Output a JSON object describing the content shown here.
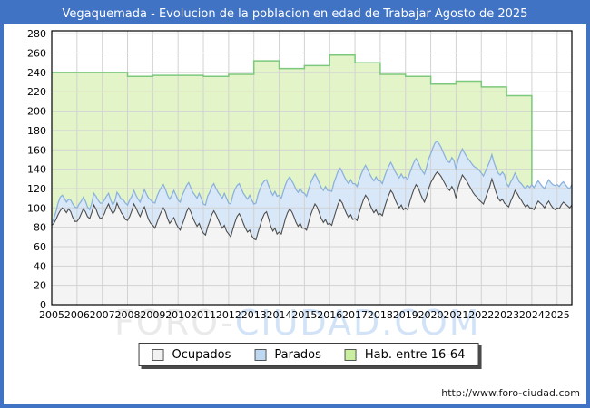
{
  "title": "Vegaquemada - Evolucion de la poblacion en edad de Trabajar Agosto de 2025",
  "watermark": {
    "part1": "FORO-",
    "part2": "CIUDAD.COM"
  },
  "footer": {
    "url": "http://www.foro-ciudad.com"
  },
  "legend": {
    "items": [
      {
        "label": "Ocupados",
        "fill": "#f2f2f2"
      },
      {
        "label": "Parados",
        "fill": "#bed8f2"
      },
      {
        "label": "Hab. entre 16-64",
        "fill": "#c9ee9e"
      }
    ]
  },
  "colors": {
    "frame": "#4173c4",
    "titlebar": "#4173c4",
    "title_text": "#ffffff",
    "plot_border": "#000000",
    "grid": "#d2d2d2",
    "hab_fill": "#e3f5c8",
    "hab_line": "#7cc87c",
    "parados_fill": "#d9e8f8",
    "parados_line": "#8cb2dc",
    "ocupados_fill": "#f4f4f4",
    "ocupados_line": "#4d4d4d",
    "axis_text": "#000000"
  },
  "chart_data": {
    "type": "area",
    "title": "Vegaquemada - Evolucion de la poblacion en edad de Trabajar Agosto de 2025",
    "xlabel": "",
    "ylabel": "",
    "grid": true,
    "legend_position": "bottom",
    "xlim": [
      2005,
      2025.583
    ],
    "ylim": [
      0,
      283
    ],
    "x_ticks": [
      2005,
      2006,
      2007,
      2008,
      2009,
      2010,
      2011,
      2012,
      2013,
      2014,
      2015,
      2016,
      2017,
      2018,
      2019,
      2020,
      2021,
      2022,
      2023,
      2024,
      2025
    ],
    "y_ticks": [
      0,
      20,
      40,
      60,
      80,
      100,
      120,
      140,
      160,
      180,
      200,
      220,
      240,
      260,
      280
    ],
    "series": [
      {
        "name": "Hab. entre 16-64",
        "type": "annual_step",
        "years": [
          2005,
          2006,
          2007,
          2008,
          2009,
          2010,
          2011,
          2012,
          2013,
          2014,
          2015,
          2016,
          2017,
          2018,
          2019,
          2020,
          2021,
          2022,
          2023
        ],
        "values": [
          240,
          240,
          240,
          236,
          237,
          237,
          236,
          238,
          252,
          244,
          247,
          258,
          250,
          238,
          236,
          228,
          231,
          225,
          216
        ],
        "ends": 2024.0
      },
      {
        "name": "Parados",
        "type": "monthly",
        "start": "2005-01",
        "stacked_on": "Ocupados",
        "values": [
          2,
          5,
          8,
          12,
          14,
          13,
          12,
          11,
          10,
          12,
          14,
          15,
          14,
          15,
          13,
          12,
          11,
          10,
          9,
          10,
          12,
          13,
          15,
          16,
          15,
          14,
          12,
          11,
          10,
          9,
          10,
          11,
          13,
          14,
          16,
          17,
          16,
          17,
          15,
          14,
          13,
          14,
          15,
          16,
          18,
          20,
          22,
          24,
          24,
          26,
          27,
          26,
          25,
          24,
          23,
          24,
          25,
          26,
          28,
          29,
          28,
          29,
          30,
          29,
          27,
          26,
          25,
          26,
          28,
          29,
          31,
          32,
          30,
          31,
          32,
          30,
          29,
          28,
          27,
          28,
          30,
          31,
          33,
          34,
          32,
          34,
          35,
          34,
          32,
          31,
          30,
          31,
          33,
          34,
          36,
          37,
          36,
          38,
          39,
          38,
          36,
          34,
          33,
          34,
          36,
          37,
          38,
          39,
          38,
          37,
          36,
          35,
          34,
          33,
          32,
          33,
          34,
          35,
          36,
          37,
          36,
          35,
          34,
          33,
          32,
          31,
          30,
          31,
          32,
          33,
          34,
          35,
          34,
          35,
          36,
          35,
          34,
          33,
          32,
          33,
          34,
          35,
          36,
          37,
          36,
          35,
          34,
          33,
          32,
          31,
          30,
          31,
          32,
          33,
          34,
          35,
          34,
          33,
          32,
          31,
          30,
          29,
          28,
          29,
          30,
          31,
          32,
          33,
          32,
          31,
          30,
          29,
          28,
          27,
          26,
          27,
          28,
          29,
          30,
          31,
          30,
          32,
          33,
          32,
          31,
          30,
          29,
          28,
          28,
          29,
          30,
          31,
          30,
          29,
          28,
          27,
          26,
          25,
          26,
          27,
          28,
          29,
          30,
          31,
          30,
          29,
          28,
          27,
          26,
          25,
          24,
          25,
          26,
          27,
          28,
          29,
          22,
          21,
          20,
          19,
          18,
          17,
          16,
          17,
          18,
          19,
          20,
          21,
          24,
          23,
          22,
          21,
          20,
          19,
          20,
          21,
          22,
          23,
          24,
          25,
          24,
          23,
          22,
          21,
          20,
          19,
          20,
          21
        ]
      },
      {
        "name": "Ocupados",
        "type": "monthly",
        "start": "2005-01",
        "values": [
          82,
          84,
          88,
          93,
          97,
          100,
          98,
          95,
          99,
          96,
          90,
          86,
          86,
          89,
          94,
          99,
          96,
          91,
          89,
          95,
          103,
          99,
          93,
          89,
          90,
          94,
          100,
          104,
          98,
          94,
          97,
          105,
          100,
          95,
          92,
          88,
          87,
          91,
          97,
          104,
          100,
          95,
          91,
          97,
          101,
          94,
          88,
          84,
          82,
          79,
          85,
          91,
          96,
          100,
          96,
          89,
          84,
          87,
          90,
          84,
          80,
          77,
          83,
          89,
          96,
          100,
          96,
          90,
          85,
          81,
          84,
          78,
          74,
          72,
          80,
          86,
          93,
          97,
          93,
          88,
          83,
          79,
          82,
          76,
          73,
          70,
          78,
          85,
          91,
          94,
          90,
          84,
          79,
          75,
          77,
          71,
          68,
          67,
          75,
          82,
          89,
          94,
          96,
          89,
          81,
          76,
          79,
          73,
          75,
          73,
          81,
          89,
          95,
          99,
          96,
          91,
          85,
          81,
          84,
          79,
          79,
          77,
          85,
          93,
          99,
          104,
          101,
          95,
          89,
          85,
          88,
          83,
          84,
          82,
          90,
          97,
          104,
          108,
          105,
          99,
          94,
          90,
          93,
          88,
          89,
          87,
          95,
          102,
          108,
          113,
          110,
          104,
          99,
          95,
          98,
          93,
          94,
          92,
          100,
          107,
          113,
          118,
          115,
          109,
          104,
          100,
          103,
          98,
          100,
          98,
          106,
          113,
          119,
          124,
          121,
          115,
          110,
          106,
          112,
          120,
          126,
          130,
          134,
          137,
          135,
          132,
          128,
          124,
          120,
          118,
          122,
          118,
          110,
          121,
          128,
          134,
          131,
          128,
          124,
          120,
          116,
          113,
          111,
          108,
          106,
          104,
          110,
          116,
          122,
          130,
          123,
          116,
          110,
          107,
          109,
          105,
          103,
          101,
          107,
          112,
          118,
          115,
          111,
          108,
          104,
          101,
          103,
          100,
          100,
          98,
          103,
          107,
          105,
          103,
          100,
          104,
          107,
          103,
          100,
          98,
          100,
          99,
          103,
          106,
          104,
          102,
          100,
          103
        ]
      }
    ]
  }
}
